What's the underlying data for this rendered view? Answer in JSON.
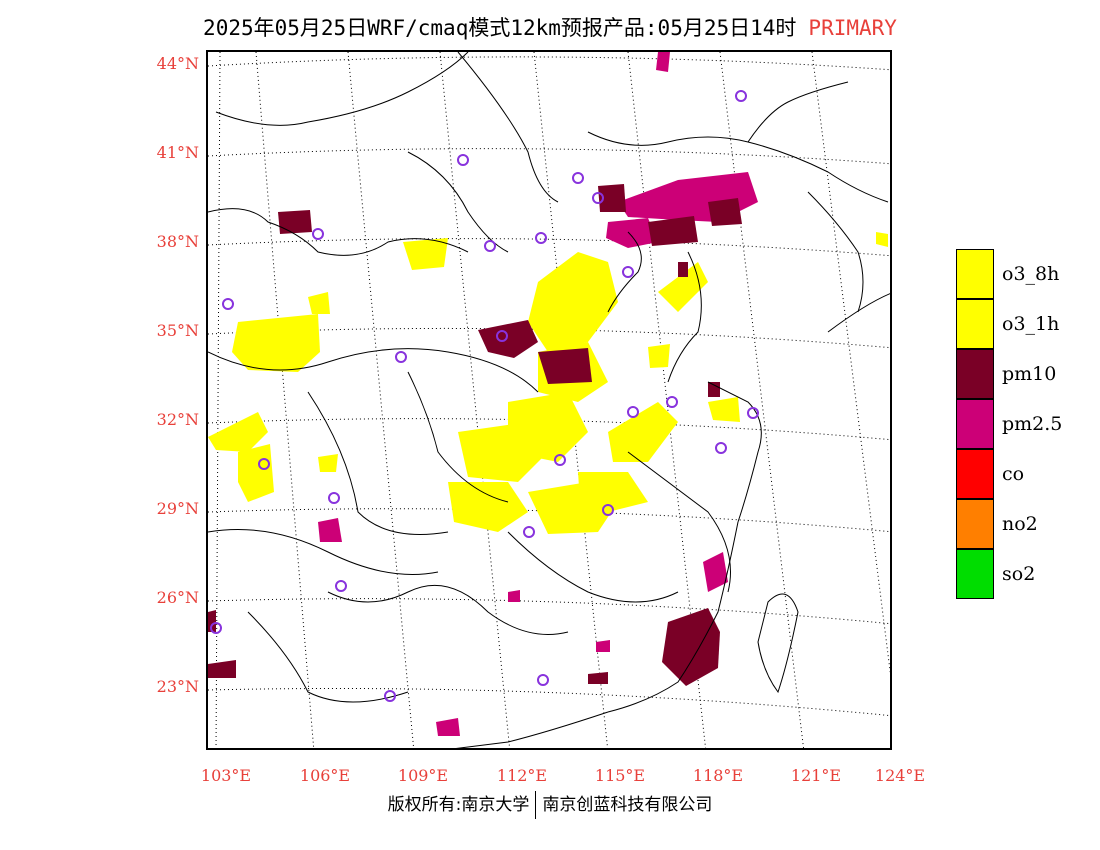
{
  "title": {
    "main": "2025年05月25日WRF/cmaq模式12km预报产品:05月25日14时",
    "tag": "PRIMARY"
  },
  "axes": {
    "lat_labels": [
      "44°N",
      "41°N",
      "38°N",
      "35°N",
      "32°N",
      "29°N",
      "26°N",
      "23°N"
    ],
    "lon_labels": [
      "103°E",
      "106°E",
      "109°E",
      "112°E",
      "115°E",
      "118°E",
      "121°E",
      "124°E"
    ]
  },
  "legend": [
    {
      "label": "o3_8h",
      "color": "#ffff00"
    },
    {
      "label": "o3_1h",
      "color": "#ffff00"
    },
    {
      "label": "pm10",
      "color": "#7a0026"
    },
    {
      "label": "pm2.5",
      "color": "#cc0077"
    },
    {
      "label": "co",
      "color": "#ff0000"
    },
    {
      "label": "no2",
      "color": "#ff7f00"
    },
    {
      "label": "so2",
      "color": "#00dd00"
    }
  ],
  "footer": {
    "left": "版权所有:南京大学",
    "right": "南京创蓝科技有限公司"
  }
}
